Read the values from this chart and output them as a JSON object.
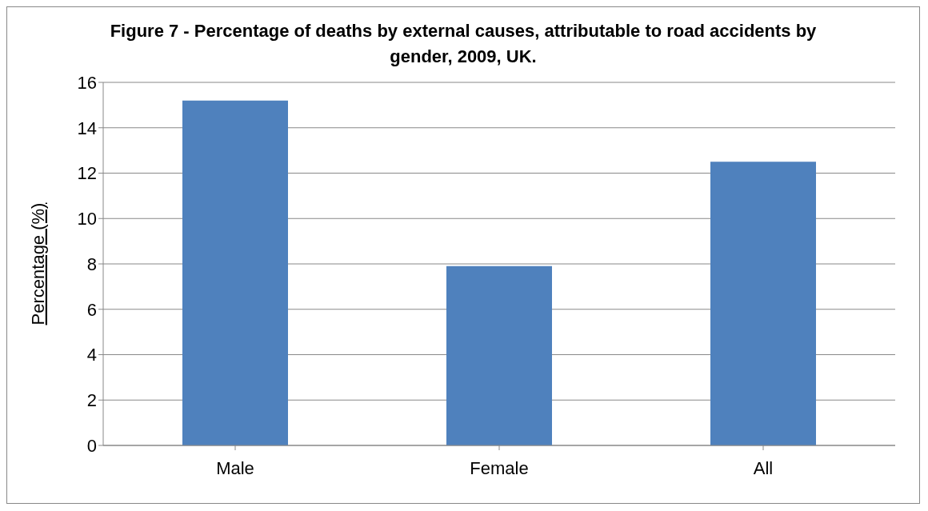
{
  "chart_data": {
    "type": "bar",
    "title": "Figure 7 - Percentage of deaths by external causes, attributable to road accidents by gender, 2009, UK.",
    "ylabel": "Percentage (%)",
    "categories": [
      "Male",
      "Female",
      "All"
    ],
    "values": [
      15.2,
      7.9,
      12.5
    ],
    "color": "#4f81bd",
    "ylim": [
      0,
      16
    ],
    "yticks": [
      0,
      2,
      4,
      6,
      8,
      10,
      12,
      14,
      16
    ],
    "grid": "y",
    "legend": false
  }
}
